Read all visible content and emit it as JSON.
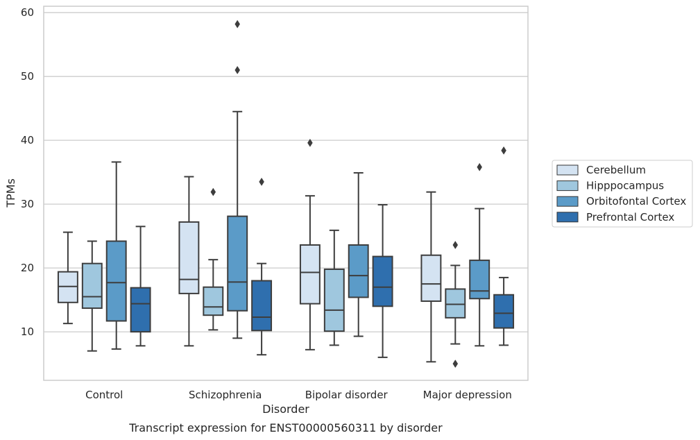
{
  "chart_data": {
    "type": "box",
    "xlabel": "Disorder",
    "ylabel": "TPMs",
    "ylim": [
      2.4,
      61
    ],
    "yticks": [
      10,
      20,
      30,
      40,
      50,
      60
    ],
    "grid": "horizontal",
    "legend_position": "right",
    "categories": [
      "Control",
      "Schizophrenia",
      "Bipolar disorder",
      "Major depression"
    ],
    "series": [
      {
        "name": "Cerebellum",
        "color": "#d4e3f2",
        "boxes": [
          {
            "whisker_low": 11.3,
            "q1": 14.6,
            "median": 17.1,
            "q3": 19.4,
            "whisker_high": 25.6,
            "outliers": []
          },
          {
            "whisker_low": 7.8,
            "q1": 16.0,
            "median": 18.2,
            "q3": 27.2,
            "whisker_high": 34.3,
            "outliers": []
          },
          {
            "whisker_low": 7.2,
            "q1": 14.4,
            "median": 19.3,
            "q3": 23.6,
            "whisker_high": 31.3,
            "outliers": [
              39.6
            ]
          },
          {
            "whisker_low": 5.3,
            "q1": 14.8,
            "median": 17.5,
            "q3": 22.0,
            "whisker_high": 31.9,
            "outliers": []
          }
        ]
      },
      {
        "name": "Hipppocampus",
        "color": "#9fc7de",
        "boxes": [
          {
            "whisker_low": 7.0,
            "q1": 13.7,
            "median": 15.5,
            "q3": 20.7,
            "whisker_high": 24.2,
            "outliers": []
          },
          {
            "whisker_low": 10.3,
            "q1": 12.6,
            "median": 13.9,
            "q3": 17.0,
            "whisker_high": 21.3,
            "outliers": [
              31.9
            ]
          },
          {
            "whisker_low": 7.9,
            "q1": 10.1,
            "median": 13.4,
            "q3": 19.8,
            "whisker_high": 25.9,
            "outliers": []
          },
          {
            "whisker_low": 8.1,
            "q1": 12.2,
            "median": 14.3,
            "q3": 16.7,
            "whisker_high": 20.4,
            "outliers": [
              5.0,
              23.6
            ]
          }
        ]
      },
      {
        "name": "Orbitofontal Cortex",
        "color": "#5b9bc8",
        "boxes": [
          {
            "whisker_low": 7.3,
            "q1": 11.7,
            "median": 17.7,
            "q3": 24.2,
            "whisker_high": 36.6,
            "outliers": []
          },
          {
            "whisker_low": 9.0,
            "q1": 13.3,
            "median": 17.8,
            "q3": 28.1,
            "whisker_high": 44.5,
            "outliers": [
              51.0,
              58.2
            ]
          },
          {
            "whisker_low": 9.3,
            "q1": 15.4,
            "median": 18.8,
            "q3": 23.6,
            "whisker_high": 34.9,
            "outliers": []
          },
          {
            "whisker_low": 7.8,
            "q1": 15.2,
            "median": 16.4,
            "q3": 21.2,
            "whisker_high": 29.3,
            "outliers": [
              35.8
            ]
          }
        ]
      },
      {
        "name": "Prefrontal Cortex",
        "color": "#2f6fae",
        "boxes": [
          {
            "whisker_low": 7.8,
            "q1": 10.0,
            "median": 14.4,
            "q3": 16.9,
            "whisker_high": 26.5,
            "outliers": []
          },
          {
            "whisker_low": 6.4,
            "q1": 10.2,
            "median": 12.3,
            "q3": 18.0,
            "whisker_high": 20.7,
            "outliers": [
              33.5
            ]
          },
          {
            "whisker_low": 6.0,
            "q1": 14.0,
            "median": 17.0,
            "q3": 21.8,
            "whisker_high": 29.9,
            "outliers": []
          },
          {
            "whisker_low": 7.9,
            "q1": 10.6,
            "median": 12.9,
            "q3": 15.8,
            "whisker_high": 18.5,
            "outliers": [
              38.4
            ]
          }
        ]
      }
    ]
  },
  "caption": "Transcript expression for ENST00000560311 by disorder"
}
